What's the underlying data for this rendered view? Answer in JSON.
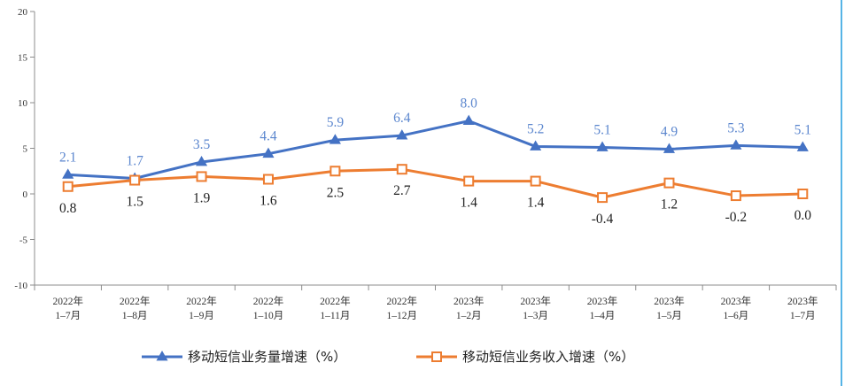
{
  "chart_data": {
    "type": "line",
    "categories": [
      [
        "2022年",
        "1–7月"
      ],
      [
        "2022年",
        "1–8月"
      ],
      [
        "2022年",
        "1–9月"
      ],
      [
        "2022年",
        "1–10月"
      ],
      [
        "2022年",
        "1–11月"
      ],
      [
        "2022年",
        "1–12月"
      ],
      [
        "2023年",
        "1–2月"
      ],
      [
        "2023年",
        "1–3月"
      ],
      [
        "2023年",
        "1–4月"
      ],
      [
        "2023年",
        "1–5月"
      ],
      [
        "2023年",
        "1–6月"
      ],
      [
        "2023年",
        "1–7月"
      ]
    ],
    "series": [
      {
        "name": "移动短信业务量增速（%）",
        "values": [
          2.1,
          1.7,
          3.5,
          4.4,
          5.9,
          6.4,
          8.0,
          5.2,
          5.1,
          4.9,
          5.3,
          5.1
        ],
        "labels": [
          "2.1",
          "1.7",
          "3.5",
          "4.4",
          "5.9",
          "6.4",
          "8.0",
          "5.2",
          "5.1",
          "4.9",
          "5.3",
          "5.1"
        ],
        "color": "#4472C4",
        "label_color": "#5B86CE",
        "marker": "triangle",
        "label_position": "above"
      },
      {
        "name": "移动短信业务收入增速（%）",
        "values": [
          0.8,
          1.5,
          1.9,
          1.6,
          2.5,
          2.7,
          1.4,
          1.4,
          -0.4,
          1.2,
          -0.2,
          0.0
        ],
        "labels": [
          "0.8",
          "1.5",
          "1.9",
          "1.6",
          "2.5",
          "2.7",
          "1.4",
          "1.4",
          "-0.4",
          "1.2",
          "-0.2",
          "0.0"
        ],
        "color": "#ED7D31",
        "label_color": "#222222",
        "marker": "square",
        "label_position": "below"
      }
    ],
    "yticks": [
      "20",
      "15",
      "10",
      "5",
      "0",
      "-5",
      "-10"
    ],
    "ylim": [
      -10,
      20
    ],
    "ytick_step": 5,
    "grid": false,
    "legend_position": "bottom-center",
    "title": "",
    "xlabel": "",
    "ylabel": ""
  },
  "colors": {
    "axis": "#8c8c8c",
    "right_border": "#56B4E6"
  }
}
